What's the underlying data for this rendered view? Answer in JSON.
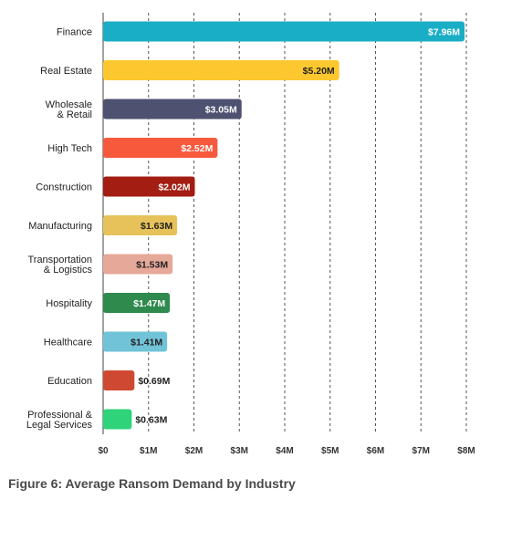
{
  "caption": "Figure 6: Average Ransom Demand by Industry",
  "chart_data": {
    "type": "bar",
    "orientation": "horizontal",
    "title": "",
    "xlabel": "",
    "ylabel": "",
    "xlim": [
      0,
      8
    ],
    "grid": true,
    "ticks": [
      "$0",
      "$1M",
      "$2M",
      "$3M",
      "$4M",
      "$5M",
      "$6M",
      "$7M",
      "$8M"
    ],
    "categories": [
      [
        "Finance"
      ],
      [
        "Real Estate"
      ],
      [
        "Wholesale",
        "& Retail"
      ],
      [
        "High Tech"
      ],
      [
        "Construction"
      ],
      [
        "Manufacturing"
      ],
      [
        "Transportation",
        "& Logistics"
      ],
      [
        "Hospitality"
      ],
      [
        "Healthcare"
      ],
      [
        "Education"
      ],
      [
        "Professional &",
        "Legal Services"
      ]
    ],
    "values": [
      7.96,
      5.2,
      3.05,
      2.52,
      2.02,
      1.63,
      1.53,
      1.47,
      1.41,
      0.69,
      0.63
    ],
    "value_labels": [
      "$7.96M",
      "$5.20M",
      "$3.05M",
      "$2.52M",
      "$2.02M",
      "$1.63M",
      "$1.53M",
      "$1.47M",
      "$1.41M",
      "$0.69M",
      "$0.63M"
    ],
    "colors": [
      "#1aaec6",
      "#fdc82f",
      "#4f5170",
      "#f7593d",
      "#a31d12",
      "#e7c25b",
      "#e6a899",
      "#2e8a4d",
      "#71c3d8",
      "#cf4932",
      "#2fd37a"
    ],
    "label_colors": [
      "#ffffff",
      "#222222",
      "#ffffff",
      "#ffffff",
      "#ffffff",
      "#222222",
      "#222222",
      "#ffffff",
      "#222222",
      "#222222",
      "#222222"
    ]
  }
}
